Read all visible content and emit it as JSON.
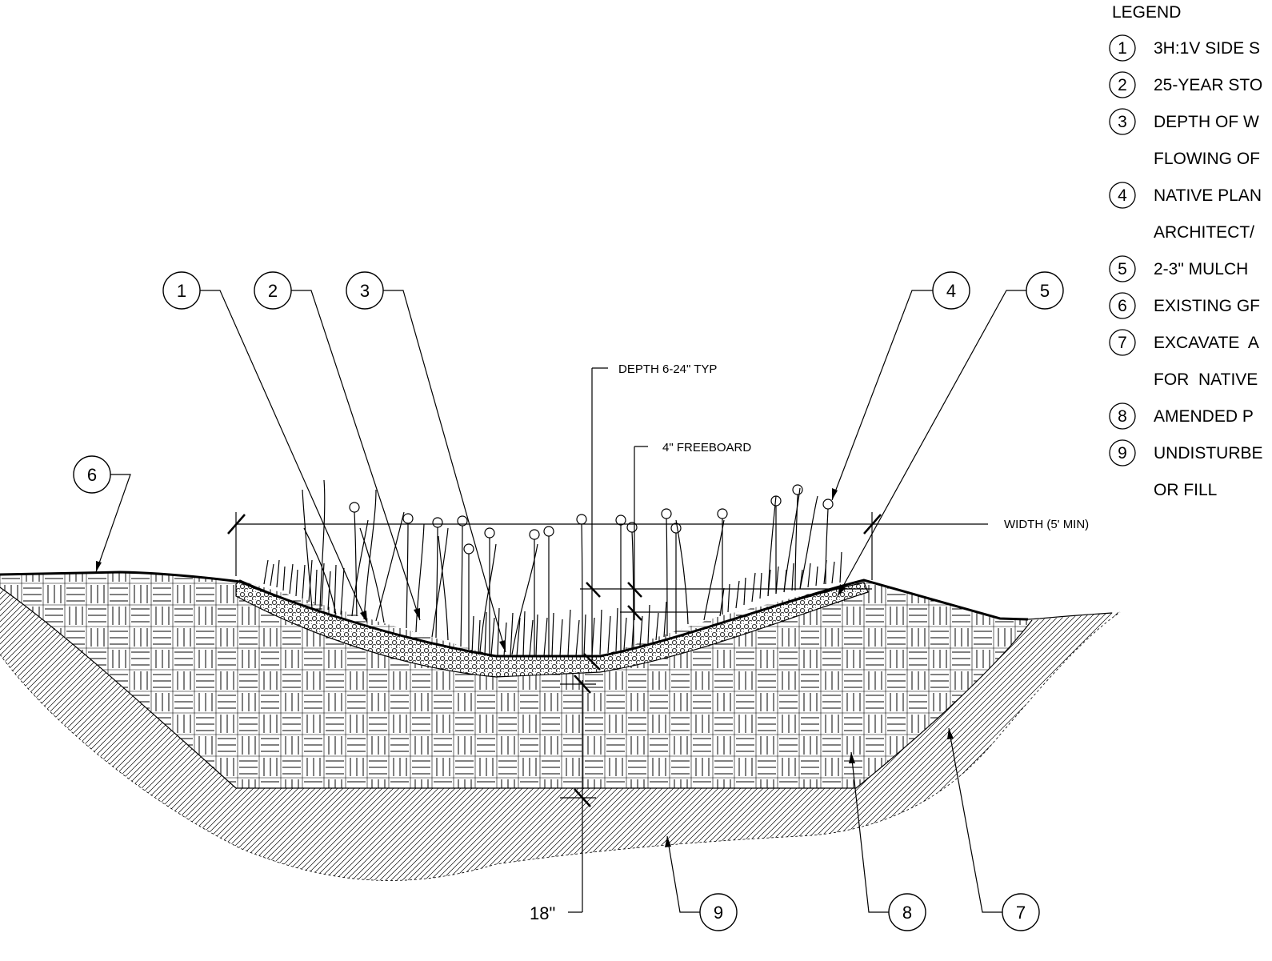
{
  "legend": {
    "title": "LEGEND",
    "items": [
      {
        "num": "1",
        "lines": [
          "3H:1V SIDE S"
        ]
      },
      {
        "num": "2",
        "lines": [
          "25-YEAR STO"
        ]
      },
      {
        "num": "3",
        "lines": [
          "DEPTH OF W",
          "FLOWING OF"
        ]
      },
      {
        "num": "4",
        "lines": [
          "NATIVE PLAN",
          "ARCHITECT/"
        ]
      },
      {
        "num": "5",
        "lines": [
          "2-3\" MULCH"
        ]
      },
      {
        "num": "6",
        "lines": [
          "EXISTING GF"
        ]
      },
      {
        "num": "7",
        "lines": [
          "EXCAVATE  A",
          "FOR  NATIVE"
        ]
      },
      {
        "num": "8",
        "lines": [
          "AMENDED P"
        ]
      },
      {
        "num": "9",
        "lines": [
          "UNDISTURBE",
          "OR FILL"
        ]
      }
    ]
  },
  "callouts": [
    "1",
    "2",
    "3",
    "4",
    "5",
    "6",
    "7",
    "8",
    "9"
  ],
  "dimensions": {
    "depth": "DEPTH 6-24\" TYP",
    "freeboard": "4\" FREEBOARD",
    "width": "WIDTH (5' MIN)",
    "soil_depth": "18\""
  }
}
